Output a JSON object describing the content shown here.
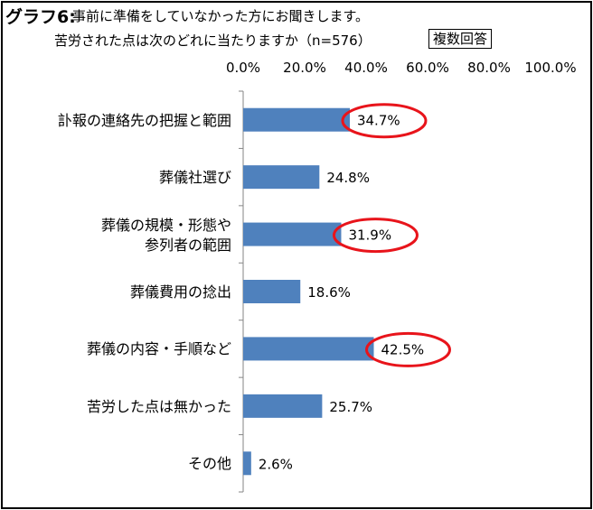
{
  "title": {
    "prefix": "グラフ6:",
    "rest": "事前に準備をしていなかった方にお聞きします。",
    "subtitle": "苦労された点は次のどれに当たりますか（n=576）",
    "badge": "複数回答"
  },
  "chart_data": {
    "type": "bar",
    "orientation": "horizontal",
    "categories": [
      "訃報の連絡先の把握と範囲",
      "葬儀社選び",
      "葬儀の規模・形態や\n参列者の範囲",
      "葬儀費用の捻出",
      "葬儀の内容・手順など",
      "苦労した点は無かった",
      "その他"
    ],
    "values": [
      34.7,
      24.8,
      31.9,
      18.6,
      42.5,
      25.7,
      2.6
    ],
    "value_labels": [
      "34.7%",
      "24.8%",
      "31.9%",
      "18.6%",
      "42.5%",
      "25.7%",
      "2.6%"
    ],
    "highlighted": [
      true,
      false,
      true,
      false,
      true,
      false,
      false
    ],
    "xlim": [
      0,
      100
    ],
    "x_ticks": [
      "0.0%",
      "20.0%",
      "40.0%",
      "60.0%",
      "80.0%",
      "100.0%"
    ],
    "x_axis_position": "top",
    "grid": false,
    "bar_color": "#4f81bd",
    "highlight_color": "#e8141b"
  }
}
